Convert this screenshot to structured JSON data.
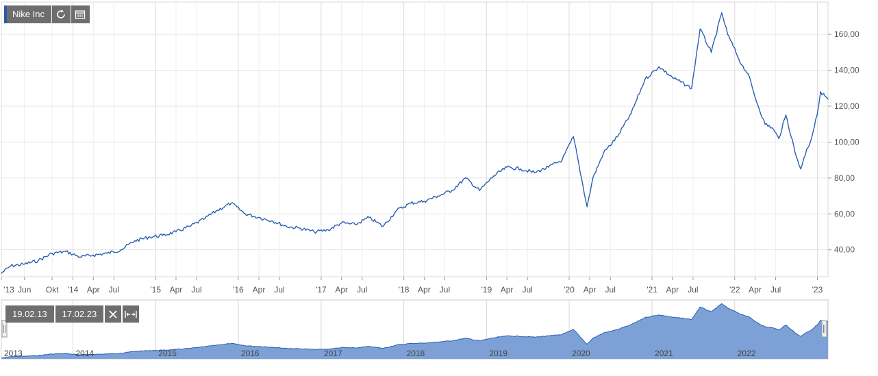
{
  "toolbar": {
    "title": "Nike Inc",
    "icons": [
      "refresh-icon",
      "calendar-icon"
    ]
  },
  "range": {
    "start": "19.02.13",
    "end": "17.02.23",
    "icons": [
      "close-icon",
      "expand-icon"
    ]
  },
  "colors": {
    "line": "#2b5fb0",
    "nav_fill": "#7da1d6",
    "nav_stroke": "#2b5fb0",
    "grid": "#e6e6e6",
    "button": "#6e6e6e"
  },
  "chart_data": {
    "type": "line",
    "grid": true,
    "y_axis_side": "right",
    "ylim": [
      25,
      178
    ],
    "yticks": [
      "40,00",
      "60,00",
      "80,00",
      "100,00",
      "120,00",
      "140,00",
      "160,00"
    ],
    "ytick_values": [
      40,
      60,
      80,
      100,
      120,
      140,
      160
    ],
    "xlim": [
      "2013-02-19",
      "2023-02-17"
    ],
    "xticks": [
      {
        "label": "'13",
        "date": "2013-01-01"
      },
      {
        "label": "Jun",
        "date": "2013-06-01"
      },
      {
        "label": "Okt",
        "date": "2013-10-01"
      },
      {
        "label": "'14",
        "date": "2014-01-01"
      },
      {
        "label": "Apr",
        "date": "2014-04-01"
      },
      {
        "label": "Jul",
        "date": "2014-07-01"
      },
      {
        "label": "'15",
        "date": "2015-01-01"
      },
      {
        "label": "Apr",
        "date": "2015-04-01"
      },
      {
        "label": "Jul",
        "date": "2015-07-01"
      },
      {
        "label": "'16",
        "date": "2016-01-01"
      },
      {
        "label": "Apr",
        "date": "2016-04-01"
      },
      {
        "label": "Jul",
        "date": "2016-07-01"
      },
      {
        "label": "'17",
        "date": "2017-01-01"
      },
      {
        "label": "Apr",
        "date": "2017-04-01"
      },
      {
        "label": "Jul",
        "date": "2017-07-01"
      },
      {
        "label": "'18",
        "date": "2018-01-01"
      },
      {
        "label": "Apr",
        "date": "2018-04-01"
      },
      {
        "label": "Jul",
        "date": "2018-07-01"
      },
      {
        "label": "'19",
        "date": "2019-01-01"
      },
      {
        "label": "Apr",
        "date": "2019-04-01"
      },
      {
        "label": "Jul",
        "date": "2019-07-01"
      },
      {
        "label": "'20",
        "date": "2020-01-01"
      },
      {
        "label": "Apr",
        "date": "2020-04-01"
      },
      {
        "label": "Jul",
        "date": "2020-07-01"
      },
      {
        "label": "'21",
        "date": "2021-01-01"
      },
      {
        "label": "Apr",
        "date": "2021-04-01"
      },
      {
        "label": "Jul",
        "date": "2021-07-01"
      },
      {
        "label": "'22",
        "date": "2022-01-01"
      },
      {
        "label": "Apr",
        "date": "2022-04-01"
      },
      {
        "label": "Jul",
        "date": "2022-07-01"
      },
      {
        "label": "'23",
        "date": "2023-01-01"
      }
    ],
    "navigator_years": [
      "2013",
      "2014",
      "2015",
      "2016",
      "2017",
      "2018",
      "2019",
      "2020",
      "2021",
      "2022"
    ],
    "series": [
      {
        "x": [
          "2013-02-19",
          "2013-04-01",
          "2013-06-01",
          "2013-08-01",
          "2013-10-01",
          "2013-12-01",
          "2014-02-01",
          "2014-04-01",
          "2014-06-01",
          "2014-08-01",
          "2014-10-01",
          "2014-12-01",
          "2015-02-01",
          "2015-04-01",
          "2015-06-01",
          "2015-08-01",
          "2015-10-01",
          "2015-12-01",
          "2016-02-01",
          "2016-04-01",
          "2016-06-01",
          "2016-08-01",
          "2016-10-01",
          "2016-12-01",
          "2017-02-01",
          "2017-04-01",
          "2017-06-01",
          "2017-08-01",
          "2017-10-01",
          "2017-12-01",
          "2018-02-01",
          "2018-04-01",
          "2018-06-01",
          "2018-08-01",
          "2018-10-01",
          "2018-12-01",
          "2019-02-01",
          "2019-04-01",
          "2019-06-01",
          "2019-08-01",
          "2019-10-01",
          "2019-12-01",
          "2020-01-20",
          "2020-03-20",
          "2020-04-15",
          "2020-06-01",
          "2020-08-01",
          "2020-10-01",
          "2020-12-01",
          "2021-02-01",
          "2021-04-01",
          "2021-06-25",
          "2021-08-01",
          "2021-09-20",
          "2021-11-05",
          "2021-12-01",
          "2022-02-01",
          "2022-03-01",
          "2022-04-01",
          "2022-05-15",
          "2022-06-15",
          "2022-07-15",
          "2022-08-15",
          "2022-09-30",
          "2022-10-20",
          "2022-11-15",
          "2022-12-01",
          "2022-12-31",
          "2023-01-15",
          "2023-02-17"
        ],
        "y": [
          27,
          31,
          32,
          34,
          38,
          39,
          36,
          37,
          38,
          40,
          45,
          47,
          48,
          50,
          53,
          57,
          62,
          66,
          60,
          58,
          56,
          53,
          52,
          50,
          51,
          55,
          54,
          58,
          53,
          62,
          66,
          67,
          70,
          73,
          80,
          73,
          81,
          86,
          85,
          83,
          86,
          90,
          103,
          64,
          80,
          94,
          103,
          116,
          135,
          142,
          136,
          130,
          163,
          150,
          172,
          160,
          143,
          138,
          125,
          110,
          108,
          102,
          115,
          92,
          85,
          96,
          100,
          115,
          128,
          124
        ]
      }
    ]
  }
}
